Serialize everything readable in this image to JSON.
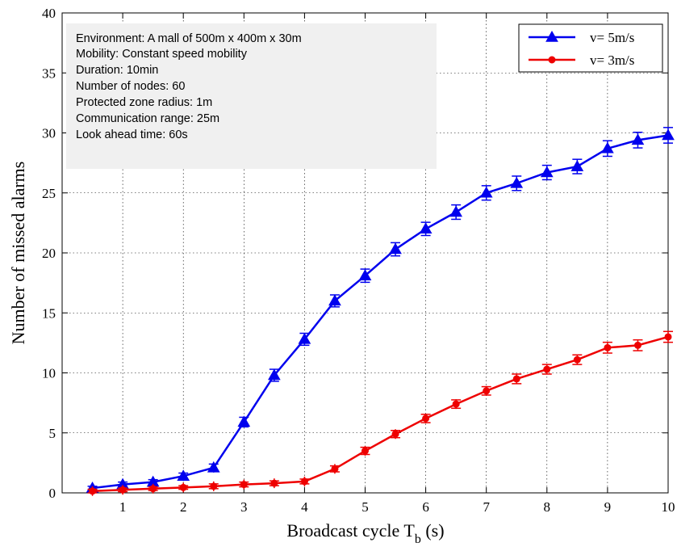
{
  "chart_data": {
    "type": "line",
    "xlabel": "Broadcast  cycle T",
    "xlabel_sub": "b",
    "xlabel_suffix": " (s)",
    "ylabel": "Number of missed alarms",
    "xlim": [
      0,
      10
    ],
    "ylim": [
      0,
      40
    ],
    "xticks": [
      1,
      2,
      3,
      4,
      5,
      6,
      7,
      8,
      9,
      10
    ],
    "yticks": [
      0,
      5,
      10,
      15,
      20,
      25,
      30,
      35,
      40
    ],
    "grid": true,
    "legend_position": "top-right",
    "series": [
      {
        "name": "v= 5m/s",
        "color": "#0000ee",
        "marker": "triangle",
        "x": [
          0.5,
          1,
          1.5,
          2,
          2.5,
          3,
          3.5,
          4,
          4.5,
          5,
          5.5,
          6,
          6.5,
          7,
          7.5,
          8,
          8.5,
          9,
          9.5,
          10
        ],
        "y": [
          0.4,
          0.7,
          0.9,
          1.4,
          2.1,
          5.9,
          9.8,
          12.8,
          16.0,
          18.1,
          20.3,
          22.0,
          23.4,
          25.0,
          25.8,
          26.7,
          27.2,
          28.7,
          29.4,
          29.8
        ],
        "err": [
          0.15,
          0.2,
          0.2,
          0.25,
          0.3,
          0.4,
          0.5,
          0.5,
          0.5,
          0.55,
          0.55,
          0.55,
          0.6,
          0.6,
          0.6,
          0.6,
          0.6,
          0.65,
          0.65,
          0.65
        ]
      },
      {
        "name": "v= 3m/s",
        "color": "#ee0000",
        "marker": "circle",
        "x": [
          0.5,
          1,
          1.5,
          2,
          2.5,
          3,
          3.5,
          4,
          4.5,
          5,
          5.5,
          6,
          6.5,
          7,
          7.5,
          8,
          8.5,
          9,
          9.5,
          10
        ],
        "y": [
          0.15,
          0.25,
          0.35,
          0.45,
          0.55,
          0.7,
          0.8,
          0.95,
          2.0,
          3.5,
          4.9,
          6.2,
          7.4,
          8.5,
          9.5,
          10.3,
          11.1,
          12.1,
          12.3,
          13.0
        ],
        "err": [
          0.15,
          0.15,
          0.15,
          0.15,
          0.2,
          0.2,
          0.2,
          0.2,
          0.25,
          0.3,
          0.3,
          0.35,
          0.35,
          0.35,
          0.4,
          0.4,
          0.4,
          0.45,
          0.45,
          0.45
        ]
      }
    ]
  },
  "notes": [
    "Environment: A mall of 500m x 400m x 30m",
    "Mobility: Constant speed mobility",
    "Duration: 10min",
    "Number of nodes: 60",
    "Protected zone radius: 1m",
    "Communication range: 25m",
    "Look ahead time: 60s"
  ]
}
